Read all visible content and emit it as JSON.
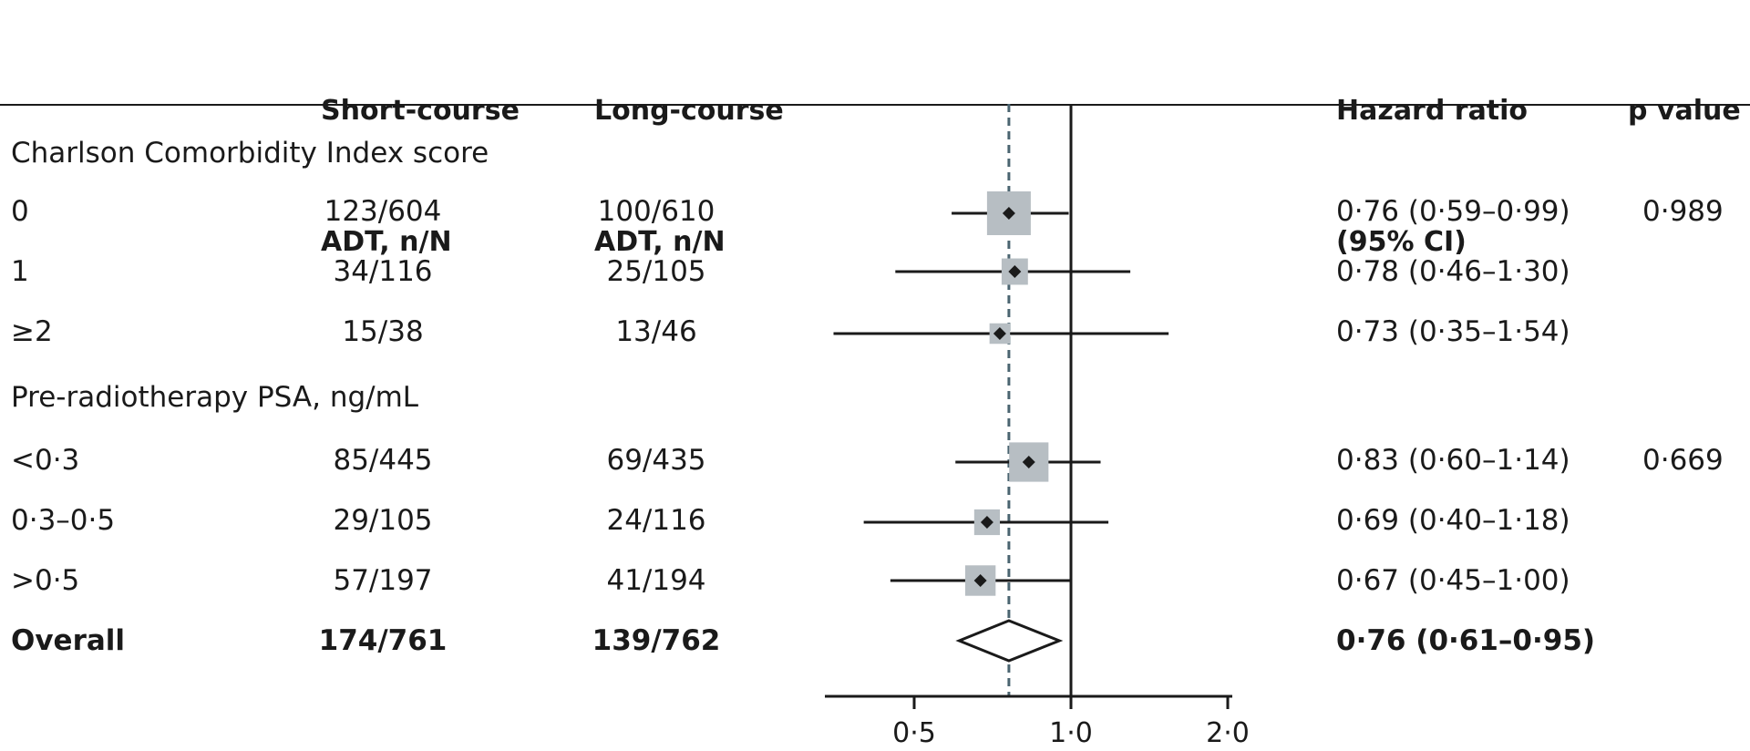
{
  "header": {
    "short_line1": "Short-course",
    "short_line2": "ADT, n/N",
    "long_line1": "Long-course",
    "long_line2": "ADT, n/N",
    "hr_line1": "Hazard ratio",
    "hr_line2": "(95% CI)",
    "pvalue": "p value"
  },
  "sections": {
    "charlson": "Charlson Comorbidity Index score",
    "psa": "Pre-radiotherapy PSA, ng/mL"
  },
  "rows": [
    {
      "label": "0",
      "short": "123/604",
      "long": "100/610",
      "hr_text": "0·76 (0·59–0·99)",
      "p": "0·989"
    },
    {
      "label": "1",
      "short": "34/116",
      "long": "25/105",
      "hr_text": "0·78 (0·46–1·30)",
      "p": ""
    },
    {
      "label": "≥2",
      "short": "15/38",
      "long": "13/46",
      "hr_text": "0·73 (0·35–1·54)",
      "p": ""
    },
    {
      "label": "<0·3",
      "short": "85/445",
      "long": "69/435",
      "hr_text": "0·83 (0·60–1·14)",
      "p": "0·669"
    },
    {
      "label": "0·3–0·5",
      "short": "29/105",
      "long": "24/116",
      "hr_text": "0·69 (0·40–1·18)",
      "p": ""
    },
    {
      "label": ">0·5",
      "short": "57/197",
      "long": "41/194",
      "hr_text": "0·67 (0·45–1·00)",
      "p": ""
    }
  ],
  "overall": {
    "label": "Overall",
    "short": "174/761",
    "long": "139/762",
    "hr_text": "0·76 (0·61–0·95)"
  },
  "chart_data": {
    "type": "forest",
    "x_scale": "log",
    "xlim": [
      0.3,
      2.0
    ],
    "xticks": [
      0.5,
      1.0,
      2.0
    ],
    "xtick_labels": [
      "0·5",
      "1·0",
      "2·0"
    ],
    "reference_line": 1.0,
    "overall_dashed_line": 0.76,
    "estimates": [
      {
        "label": "0",
        "hr": 0.76,
        "lo": 0.59,
        "hi": 0.99,
        "weight": 604
      },
      {
        "label": "1",
        "hr": 0.78,
        "lo": 0.46,
        "hi": 1.3,
        "weight": 116
      },
      {
        "label": "≥2",
        "hr": 0.73,
        "lo": 0.35,
        "hi": 1.54,
        "weight": 38
      },
      {
        "label": "<0·3",
        "hr": 0.83,
        "lo": 0.6,
        "hi": 1.14,
        "weight": 445
      },
      {
        "label": "0·3–0·5",
        "hr": 0.69,
        "lo": 0.4,
        "hi": 1.18,
        "weight": 105
      },
      {
        "label": ">0·5",
        "hr": 0.67,
        "lo": 0.45,
        "hi": 1.0,
        "weight": 197
      }
    ],
    "overall": {
      "label": "Overall",
      "hr": 0.76,
      "lo": 0.61,
      "hi": 0.95
    },
    "colors": {
      "box": "#b7bec3",
      "line": "#1a1a1a",
      "dashed": "#4a6470"
    }
  }
}
